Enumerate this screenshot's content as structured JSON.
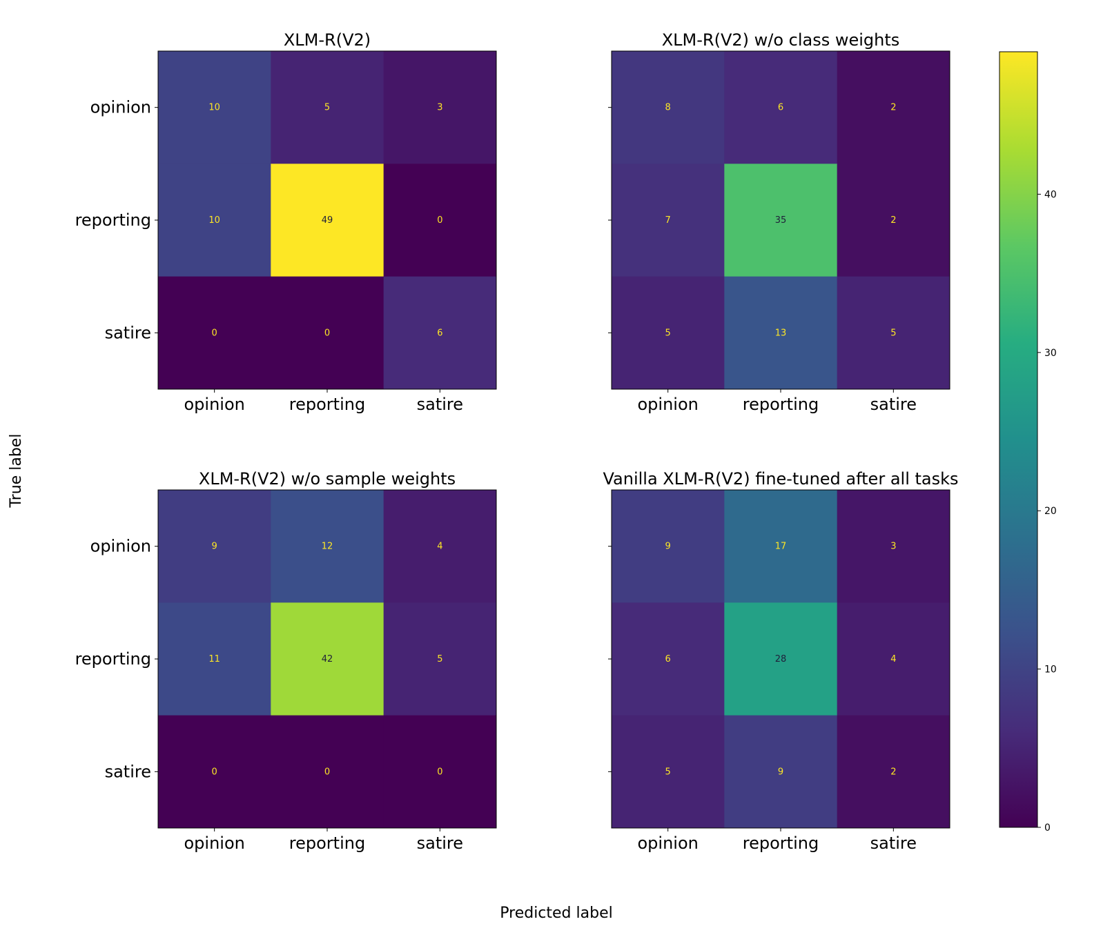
{
  "figure": {
    "ylabel": "True label",
    "xlabel": "Predicted label"
  },
  "chart_data": [
    {
      "type": "heatmap",
      "title": "XLM-R(V2)",
      "row_labels": [
        "opinion",
        "reporting",
        "satire"
      ],
      "col_labels": [
        "opinion",
        "reporting",
        "satire"
      ],
      "values": [
        [
          10,
          5,
          3
        ],
        [
          10,
          49,
          0
        ],
        [
          0,
          0,
          6
        ]
      ],
      "show_row_labels": true
    },
    {
      "type": "heatmap",
      "title": "XLM-R(V2) w/o class weights",
      "row_labels": [
        "opinion",
        "reporting",
        "satire"
      ],
      "col_labels": [
        "opinion",
        "reporting",
        "satire"
      ],
      "values": [
        [
          8,
          6,
          2
        ],
        [
          7,
          35,
          2
        ],
        [
          5,
          13,
          5
        ]
      ],
      "show_row_labels": false
    },
    {
      "type": "heatmap",
      "title": "XLM-R(V2) w/o sample weights",
      "row_labels": [
        "opinion",
        "reporting",
        "satire"
      ],
      "col_labels": [
        "opinion",
        "reporting",
        "satire"
      ],
      "values": [
        [
          9,
          12,
          4
        ],
        [
          11,
          42,
          5
        ],
        [
          0,
          0,
          0
        ]
      ],
      "show_row_labels": true
    },
    {
      "type": "heatmap",
      "title": "Vanilla XLM-R(V2) fine-tuned after all tasks",
      "row_labels": [
        "opinion",
        "reporting",
        "satire"
      ],
      "col_labels": [
        "opinion",
        "reporting",
        "satire"
      ],
      "values": [
        [
          9,
          17,
          3
        ],
        [
          6,
          28,
          4
        ],
        [
          5,
          9,
          2
        ]
      ],
      "show_row_labels": false
    }
  ],
  "colorbar": {
    "min": 0,
    "max": 49,
    "ticks": [
      0,
      10,
      20,
      30,
      40
    ],
    "colormap": "viridis"
  }
}
